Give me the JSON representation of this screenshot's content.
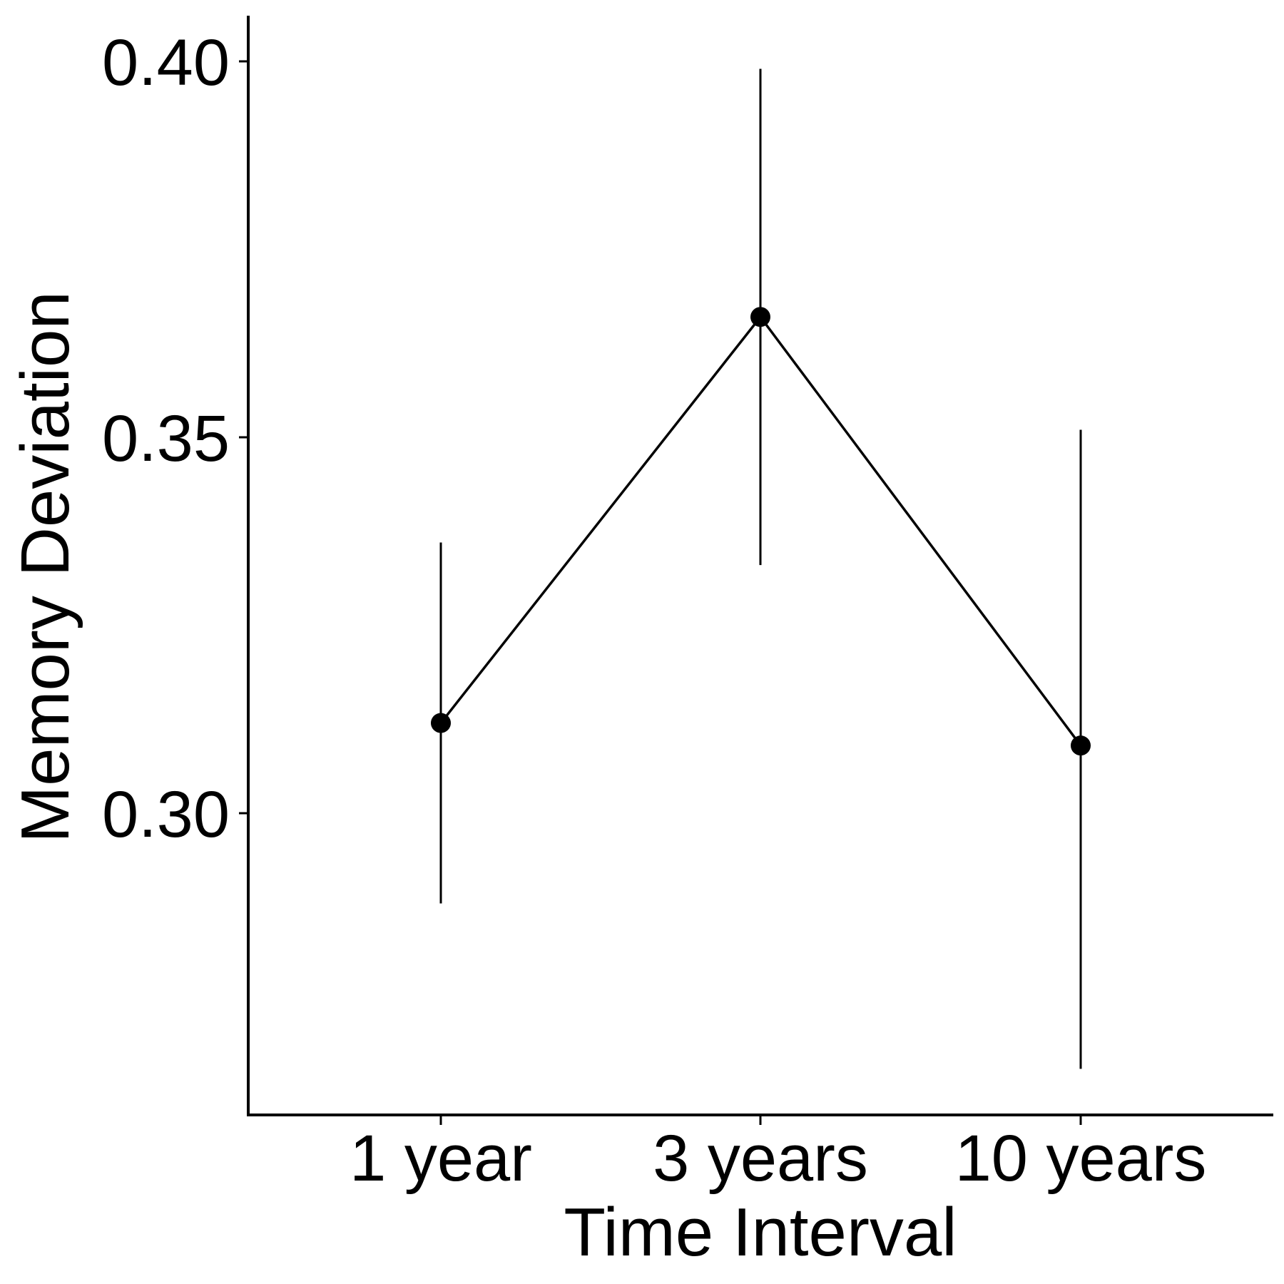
{
  "chart_data": {
    "type": "line",
    "title": "",
    "xlabel": "Time Interval",
    "ylabel": "Memory Deviation",
    "categories": [
      "1 year",
      "3 years",
      "10 years"
    ],
    "series": [
      {
        "values": [
          0.312,
          0.366,
          0.309
        ],
        "error_low": [
          0.288,
          0.333,
          0.266
        ],
        "error_high": [
          0.336,
          0.399,
          0.351
        ]
      }
    ],
    "y_ticks": [
      0.3,
      0.35,
      0.4
    ],
    "y_tick_labels": [
      "0.30",
      "0.35",
      "0.40"
    ],
    "ylim": [
      0.26,
      0.406
    ],
    "grid": false,
    "legend": "none",
    "colors": {
      "line": "#000000",
      "point": "#000000"
    }
  }
}
